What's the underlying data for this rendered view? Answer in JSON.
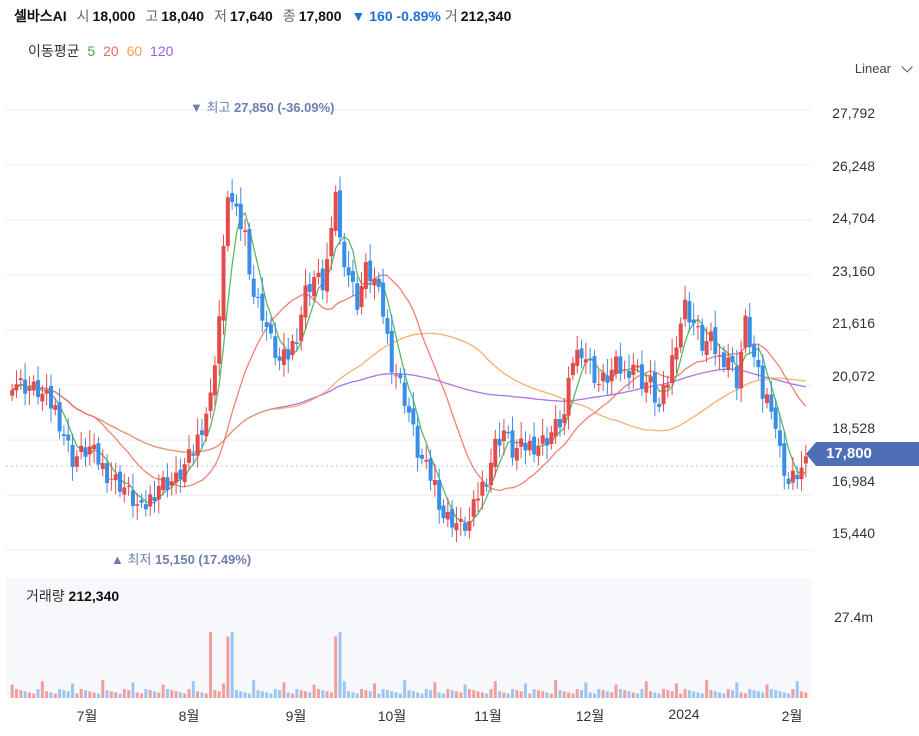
{
  "header": {
    "name": "셀바스AI",
    "open_label": "시",
    "open": "18,000",
    "high_label": "고",
    "high": "18,040",
    "low_label": "저",
    "low": "17,640",
    "close_label": "종",
    "close": "17,800",
    "change": "▼ 160 -0.89%",
    "volume_label": "거",
    "volume": "212,340"
  },
  "ma_legend": {
    "title": "이동평균",
    "p5": "5",
    "p20": "20",
    "p60": "60",
    "p120": "120"
  },
  "scale_mode": "Linear",
  "price_axis": [
    "27,792",
    "26,248",
    "24,704",
    "23,160",
    "21,616",
    "20,072",
    "18,528",
    "16,984",
    "15,440"
  ],
  "last_price": "17,800",
  "annotations": {
    "high_marker": "▼",
    "high_label": "최고",
    "high_value": "27,850 (-36.09%)",
    "low_marker": "▲",
    "low_label": "최저",
    "low_value": "15,150 (17.49%)"
  },
  "volume_panel": {
    "label": "거래량",
    "value": "212,340",
    "axis": "27.4m"
  },
  "months": [
    "7월",
    "8월",
    "9월",
    "10월",
    "11월",
    "12월",
    "2024",
    "2월"
  ],
  "colors": {
    "up": "#e44b4b",
    "down": "#3b8ee6",
    "ma5": "#3fae49",
    "ma20": "#ef6b62",
    "ma60": "#f6a15a",
    "ma120": "#9b5de5",
    "tag": "#4d6db4"
  },
  "chart_data": {
    "type": "candlestick",
    "y_range": [
      15000,
      28400
    ],
    "ticks": [
      27792,
      26248,
      24704,
      23160,
      21616,
      20072,
      18528,
      16984,
      15440
    ],
    "close_anchors": [
      [
        0,
        20200
      ],
      [
        6,
        19900
      ],
      [
        10,
        19400
      ],
      [
        14,
        18000
      ],
      [
        18,
        18300
      ],
      [
        22,
        17600
      ],
      [
        26,
        17200
      ],
      [
        30,
        16500
      ],
      [
        34,
        17300
      ],
      [
        38,
        17400
      ],
      [
        42,
        18200
      ],
      [
        46,
        19700
      ],
      [
        48,
        22000
      ],
      [
        50,
        25500
      ],
      [
        52,
        24800
      ],
      [
        54,
        24300
      ],
      [
        56,
        22600
      ],
      [
        58,
        22100
      ],
      [
        60,
        21300
      ],
      [
        62,
        20700
      ],
      [
        64,
        20900
      ],
      [
        66,
        21500
      ],
      [
        68,
        22700
      ],
      [
        70,
        23100
      ],
      [
        72,
        22900
      ],
      [
        74,
        24200
      ],
      [
        75,
        25600
      ],
      [
        76,
        24100
      ],
      [
        78,
        23200
      ],
      [
        80,
        22400
      ],
      [
        82,
        23300
      ],
      [
        84,
        23000
      ],
      [
        86,
        22100
      ],
      [
        88,
        20700
      ],
      [
        90,
        20100
      ],
      [
        92,
        19300
      ],
      [
        94,
        18200
      ],
      [
        96,
        17700
      ],
      [
        98,
        17300
      ],
      [
        100,
        16400
      ],
      [
        102,
        16300
      ],
      [
        104,
        16100
      ],
      [
        106,
        16200
      ],
      [
        108,
        17000
      ],
      [
        110,
        17500
      ],
      [
        112,
        18400
      ],
      [
        114,
        18800
      ],
      [
        116,
        18200
      ],
      [
        118,
        18300
      ],
      [
        120,
        18400
      ],
      [
        122,
        18400
      ],
      [
        124,
        18600
      ],
      [
        126,
        18900
      ],
      [
        128,
        19200
      ],
      [
        130,
        20800
      ],
      [
        132,
        21100
      ],
      [
        134,
        20600
      ],
      [
        136,
        20100
      ],
      [
        138,
        20300
      ],
      [
        140,
        20600
      ],
      [
        142,
        20400
      ],
      [
        144,
        20700
      ],
      [
        146,
        20200
      ],
      [
        148,
        20100
      ],
      [
        150,
        19400
      ],
      [
        152,
        20200
      ],
      [
        154,
        21400
      ],
      [
        156,
        22300
      ],
      [
        158,
        21800
      ],
      [
        160,
        21200
      ],
      [
        162,
        21300
      ],
      [
        164,
        20800
      ],
      [
        166,
        20900
      ],
      [
        168,
        20200
      ],
      [
        170,
        21800
      ],
      [
        172,
        20800
      ],
      [
        174,
        19800
      ],
      [
        176,
        19600
      ],
      [
        178,
        18200
      ],
      [
        180,
        17300
      ],
      [
        182,
        17600
      ],
      [
        184,
        17800
      ]
    ],
    "volume_max": 27400000,
    "series": [
      "MA5",
      "MA20",
      "MA60",
      "MA120"
    ]
  }
}
